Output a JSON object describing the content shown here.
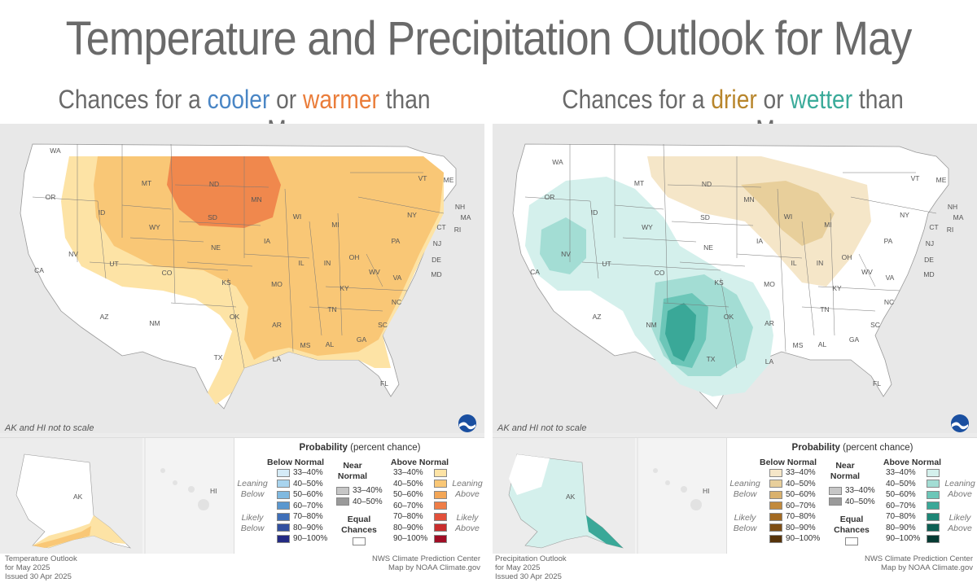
{
  "title": "Temperature and Precipitation Outlook for May",
  "left": {
    "subtitle_pre": "Chances for a ",
    "subtitle_a": "cooler",
    "subtitle_mid": " or ",
    "subtitle_b": "warmer",
    "subtitle_post": " than average May",
    "scale_note": "AK and HI not to scale",
    "footer": [
      "Temperature Outlook",
      "for May 2025",
      "Issued 30 Apr 2025"
    ],
    "credits": [
      "NWS Climate Prediction Center",
      "Map by NOAA Climate.gov"
    ],
    "legend": {
      "title_bold": "Probability",
      "title_rest": " (percent chance)",
      "below_head": "Below Normal",
      "near_head": "Near Normal",
      "above_head": "Above Normal",
      "leaning_below": "Leaning Below",
      "likely_below": "Likely Below",
      "leaning_above": "Leaning Above",
      "likely_above": "Likely Above",
      "equal": "Equal Chances",
      "below_colors": [
        "#d5ebf7",
        "#a8d4ee",
        "#7fb9e0",
        "#5a97cf",
        "#3f6fb8",
        "#314f9f",
        "#232a82"
      ],
      "above_colors": [
        "#fde3a5",
        "#f9c776",
        "#f3a656",
        "#ef7d47",
        "#e2503b",
        "#c92e2e",
        "#a00d25"
      ],
      "near_colors": [
        "#c6c6c6",
        "#9a9a9a"
      ]
    }
  },
  "right": {
    "subtitle_pre": "Chances for a ",
    "subtitle_a": "drier",
    "subtitle_mid": " or ",
    "subtitle_b": "wetter",
    "subtitle_post": " than average May",
    "scale_note": "AK and HI not to scale",
    "footer": [
      "Precipitation Outlook",
      "for May 2025",
      "Issued 30 Apr 2025"
    ],
    "credits": [
      "NWS Climate Prediction Center",
      "Map by NOAA Climate.gov"
    ],
    "legend": {
      "title_bold": "Probability",
      "title_rest": " (percent chance)",
      "below_head": "Below Normal",
      "near_head": "Near Normal",
      "above_head": "Above Normal",
      "leaning_below": "Leaning Below",
      "likely_below": "Likely Below",
      "leaning_above": "Leaning Above",
      "likely_above": "Likely Above",
      "equal": "Equal Chances",
      "below_colors": [
        "#f5e6c8",
        "#e8cf9b",
        "#d9b16d",
        "#c28a3c",
        "#a36a22",
        "#7e4e15",
        "#56330a"
      ],
      "above_colors": [
        "#d4f0ec",
        "#a3ddd4",
        "#6cc6b8",
        "#3aa898",
        "#1d8676",
        "#0d5f53",
        "#063a33"
      ],
      "near_colors": [
        "#c6c6c6",
        "#9a9a9a"
      ]
    }
  },
  "ranges": [
    "33–40%",
    "40–50%",
    "50–60%",
    "60–70%",
    "70–80%",
    "80–90%",
    "90–100%"
  ],
  "near_ranges": [
    "33–40%",
    "40–50%"
  ],
  "inset_labels": {
    "ak": "AK",
    "hi": "HI"
  },
  "states": [
    "WA",
    "OR",
    "CA",
    "ID",
    "NV",
    "MT",
    "WY",
    "UT",
    "AZ",
    "CO",
    "NM",
    "ND",
    "SD",
    "NE",
    "KS",
    "OK",
    "TX",
    "MN",
    "IA",
    "MO",
    "AR",
    "LA",
    "WI",
    "IL",
    "MI",
    "IN",
    "OH",
    "KY",
    "TN",
    "MS",
    "AL",
    "GA",
    "FL",
    "SC",
    "NC",
    "VA",
    "WV",
    "PA",
    "NY",
    "VT",
    "ME",
    "NH",
    "MA",
    "RI",
    "CT",
    "NJ",
    "DE",
    "MD"
  ]
}
